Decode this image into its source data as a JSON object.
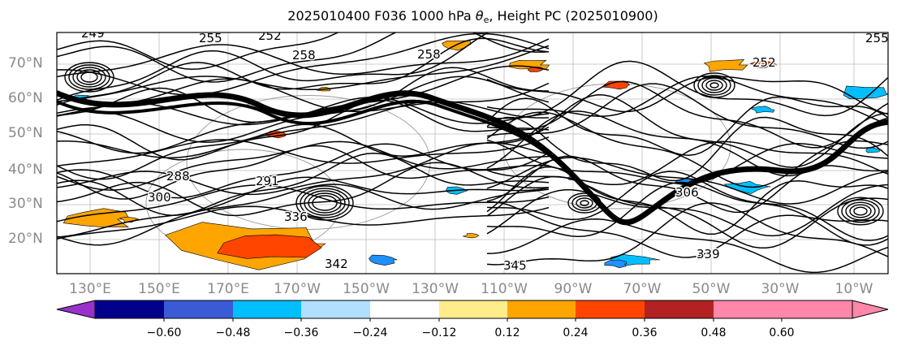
{
  "title": {
    "prefix": "2025010400 F036 1000 hPa ",
    "theta": "θ",
    "theta_sub": "e",
    "suffix": ", Height PC (2025010900)"
  },
  "map": {
    "lat_labels": [
      "70°N",
      "60°N",
      "50°N",
      "40°N",
      "30°N",
      "20°N"
    ],
    "lon_labels": [
      "130°E",
      "150°E",
      "170°E",
      "170°W",
      "150°W",
      "130°W",
      "110°W",
      "90°W",
      "70°W",
      "50°W",
      "30°W",
      "10°W"
    ],
    "contour_labels": [
      "255",
      "252",
      "258",
      "258",
      "249",
      "291",
      "288",
      "300",
      "336",
      "342",
      "345",
      "339",
      "306",
      "255",
      "252"
    ],
    "shading_colors": [
      "#ffa500",
      "#ff4500",
      "#00bfff",
      "#1e90ff"
    ]
  },
  "colorbar": {
    "tick_labels": [
      "−0.60",
      "−0.48",
      "−0.36",
      "−0.24",
      "−0.12",
      "0.12",
      "0.24",
      "0.36",
      "0.48",
      "0.60"
    ],
    "colors": [
      "#9932cc",
      "#00008b",
      "#3b5bd6",
      "#00bfff",
      "#b0e0fe",
      "#ffffff",
      "#ffec8b",
      "#ffa500",
      "#ff4500",
      "#b22222",
      "#ff88aa",
      "#ff88aa"
    ]
  }
}
